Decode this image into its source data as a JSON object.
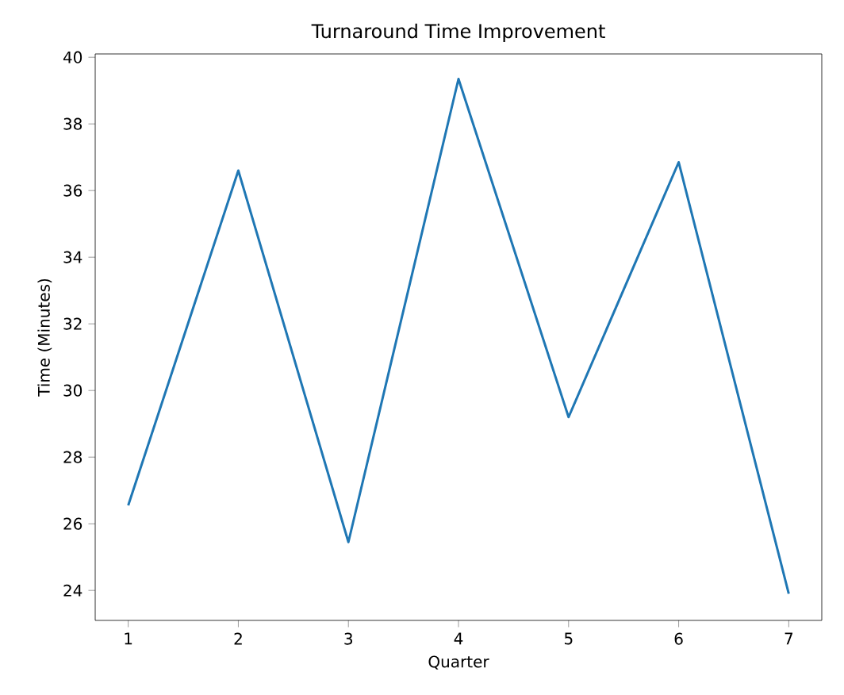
{
  "chart_data": {
    "type": "line",
    "title": "Turnaround Time Improvement",
    "xlabel": "Quarter",
    "ylabel": "Time (Minutes)",
    "x": [
      1,
      2,
      3,
      4,
      5,
      6,
      7
    ],
    "series": [
      {
        "color": "#1f77b4",
        "values": [
          26.55,
          36.6,
          25.45,
          39.35,
          29.2,
          36.85,
          23.9
        ]
      }
    ],
    "xlim": [
      0.7,
      7.3
    ],
    "ylim": [
      23.1,
      40.1
    ],
    "xticks": [
      1,
      2,
      3,
      4,
      5,
      6,
      7
    ],
    "yticks": [
      24,
      26,
      28,
      30,
      32,
      34,
      36,
      38,
      40
    ],
    "grid": false,
    "legend": false,
    "marker": "none",
    "line_style": "solid"
  }
}
